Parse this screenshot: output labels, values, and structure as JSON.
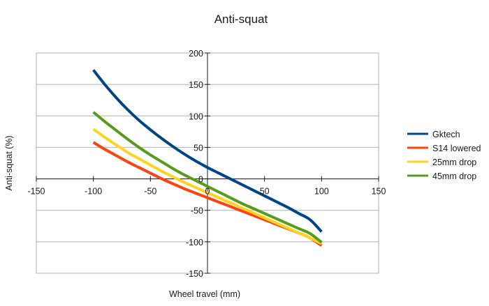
{
  "chart_data": {
    "type": "line",
    "title": "Anti-squat",
    "xlabel": "Wheel travel (mm)",
    "ylabel": "Anti-squat (%)",
    "xlim": [
      -150,
      150
    ],
    "ylim": [
      -150,
      200
    ],
    "xticks": [
      -150,
      -100,
      -50,
      0,
      50,
      100,
      150
    ],
    "yticks": [
      -150,
      -100,
      -50,
      0,
      50,
      100,
      150,
      200
    ],
    "grid": "horizontal",
    "legend_position": "right",
    "series": [
      {
        "name": "Gktech",
        "color": "#004586",
        "x": [
          -100,
          -90,
          -80,
          -70,
          -60,
          -50,
          -40,
          -30,
          -20,
          -10,
          0,
          10,
          20,
          30,
          40,
          50,
          60,
          70,
          80,
          90,
          100
        ],
        "y": [
          173,
          150,
          129,
          110,
          93,
          78,
          64,
          51,
          39,
          28,
          18,
          9,
          0,
          -9,
          -18,
          -27,
          -36,
          -45,
          -55,
          -65,
          -84
        ]
      },
      {
        "name": "S14 lowered",
        "color": "#ff420e",
        "x": [
          -100,
          -90,
          -80,
          -70,
          -60,
          -50,
          -40,
          -30,
          -20,
          -10,
          0,
          10,
          20,
          30,
          40,
          50,
          60,
          70,
          80,
          90,
          100
        ],
        "y": [
          58,
          47,
          37,
          27,
          18,
          9,
          0,
          -8,
          -16,
          -23,
          -30,
          -37,
          -44,
          -51,
          -58,
          -65,
          -72,
          -79,
          -86,
          -94,
          -106
        ]
      },
      {
        "name": "25mm drop",
        "color": "#ffd320",
        "x": [
          -100,
          -90,
          -80,
          -70,
          -60,
          -50,
          -40,
          -30,
          -20,
          -10,
          0,
          10,
          20,
          30,
          40,
          50,
          60,
          70,
          80,
          90,
          100
        ],
        "y": [
          79,
          66,
          54,
          42,
          32,
          22,
          12,
          3,
          -6,
          -14,
          -22,
          -30,
          -38,
          -46,
          -54,
          -62,
          -70,
          -78,
          -86,
          -94,
          -103
        ]
      },
      {
        "name": "45mm drop",
        "color": "#579d1c",
        "x": [
          -100,
          -90,
          -80,
          -70,
          -60,
          -50,
          -40,
          -30,
          -20,
          -10,
          0,
          10,
          20,
          30,
          40,
          50,
          60,
          70,
          80,
          90,
          100
        ],
        "y": [
          106,
          91,
          77,
          63,
          50,
          38,
          27,
          16,
          6,
          -3,
          -12,
          -21,
          -30,
          -39,
          -47,
          -55,
          -63,
          -71,
          -79,
          -87,
          -101
        ]
      }
    ]
  }
}
